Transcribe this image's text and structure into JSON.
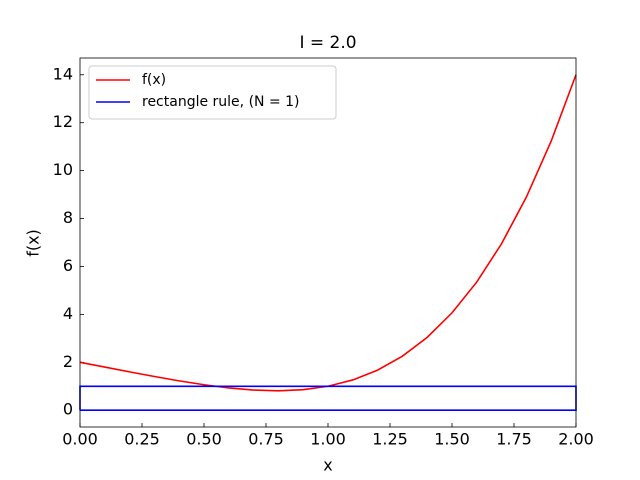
{
  "chart_data": {
    "type": "line",
    "title": "I = 2.0",
    "x_label": "x",
    "y_label": "f(x)",
    "series": [
      {
        "name": "f(x)",
        "color": "#ff0000",
        "x": [
          0,
          0.1,
          0.2,
          0.3,
          0.4,
          0.5,
          0.6,
          0.7,
          0.8,
          0.9,
          1.0,
          1.1,
          1.2,
          1.3,
          1.4,
          1.5,
          1.6,
          1.7,
          1.8,
          1.9,
          2.0
        ],
        "values": [
          2,
          1.8001,
          1.6016,
          1.4081,
          1.2256,
          1.0625,
          0.9296,
          0.8401,
          0.8096,
          0.8561,
          1,
          1.2641,
          1.6736,
          2.2561,
          3.0416,
          4.0625,
          5.3536,
          6.9521,
          8.8976,
          11.2321,
          14
        ]
      },
      {
        "name": "rectangle rule, (N = 1)",
        "color": "#0000ff",
        "x": [
          0,
          0,
          2,
          2,
          0
        ],
        "values": [
          0,
          1,
          1,
          0,
          0
        ]
      }
    ],
    "xlim": [
      0,
      2
    ],
    "ylim": [
      -0.7,
      14.7
    ],
    "xticks": [
      {
        "value": 0,
        "label": "0.00"
      },
      {
        "value": 0.25,
        "label": "0.25"
      },
      {
        "value": 0.5,
        "label": "0.50"
      },
      {
        "value": 0.75,
        "label": "0.75"
      },
      {
        "value": 1,
        "label": "1.00"
      },
      {
        "value": 1.25,
        "label": "1.25"
      },
      {
        "value": 1.5,
        "label": "1.50"
      },
      {
        "value": 1.75,
        "label": "1.75"
      },
      {
        "value": 2,
        "label": "2.00"
      }
    ],
    "yticks": [
      0,
      2,
      4,
      6,
      8,
      10,
      12,
      14
    ],
    "legend": "upper left",
    "grid": false
  }
}
